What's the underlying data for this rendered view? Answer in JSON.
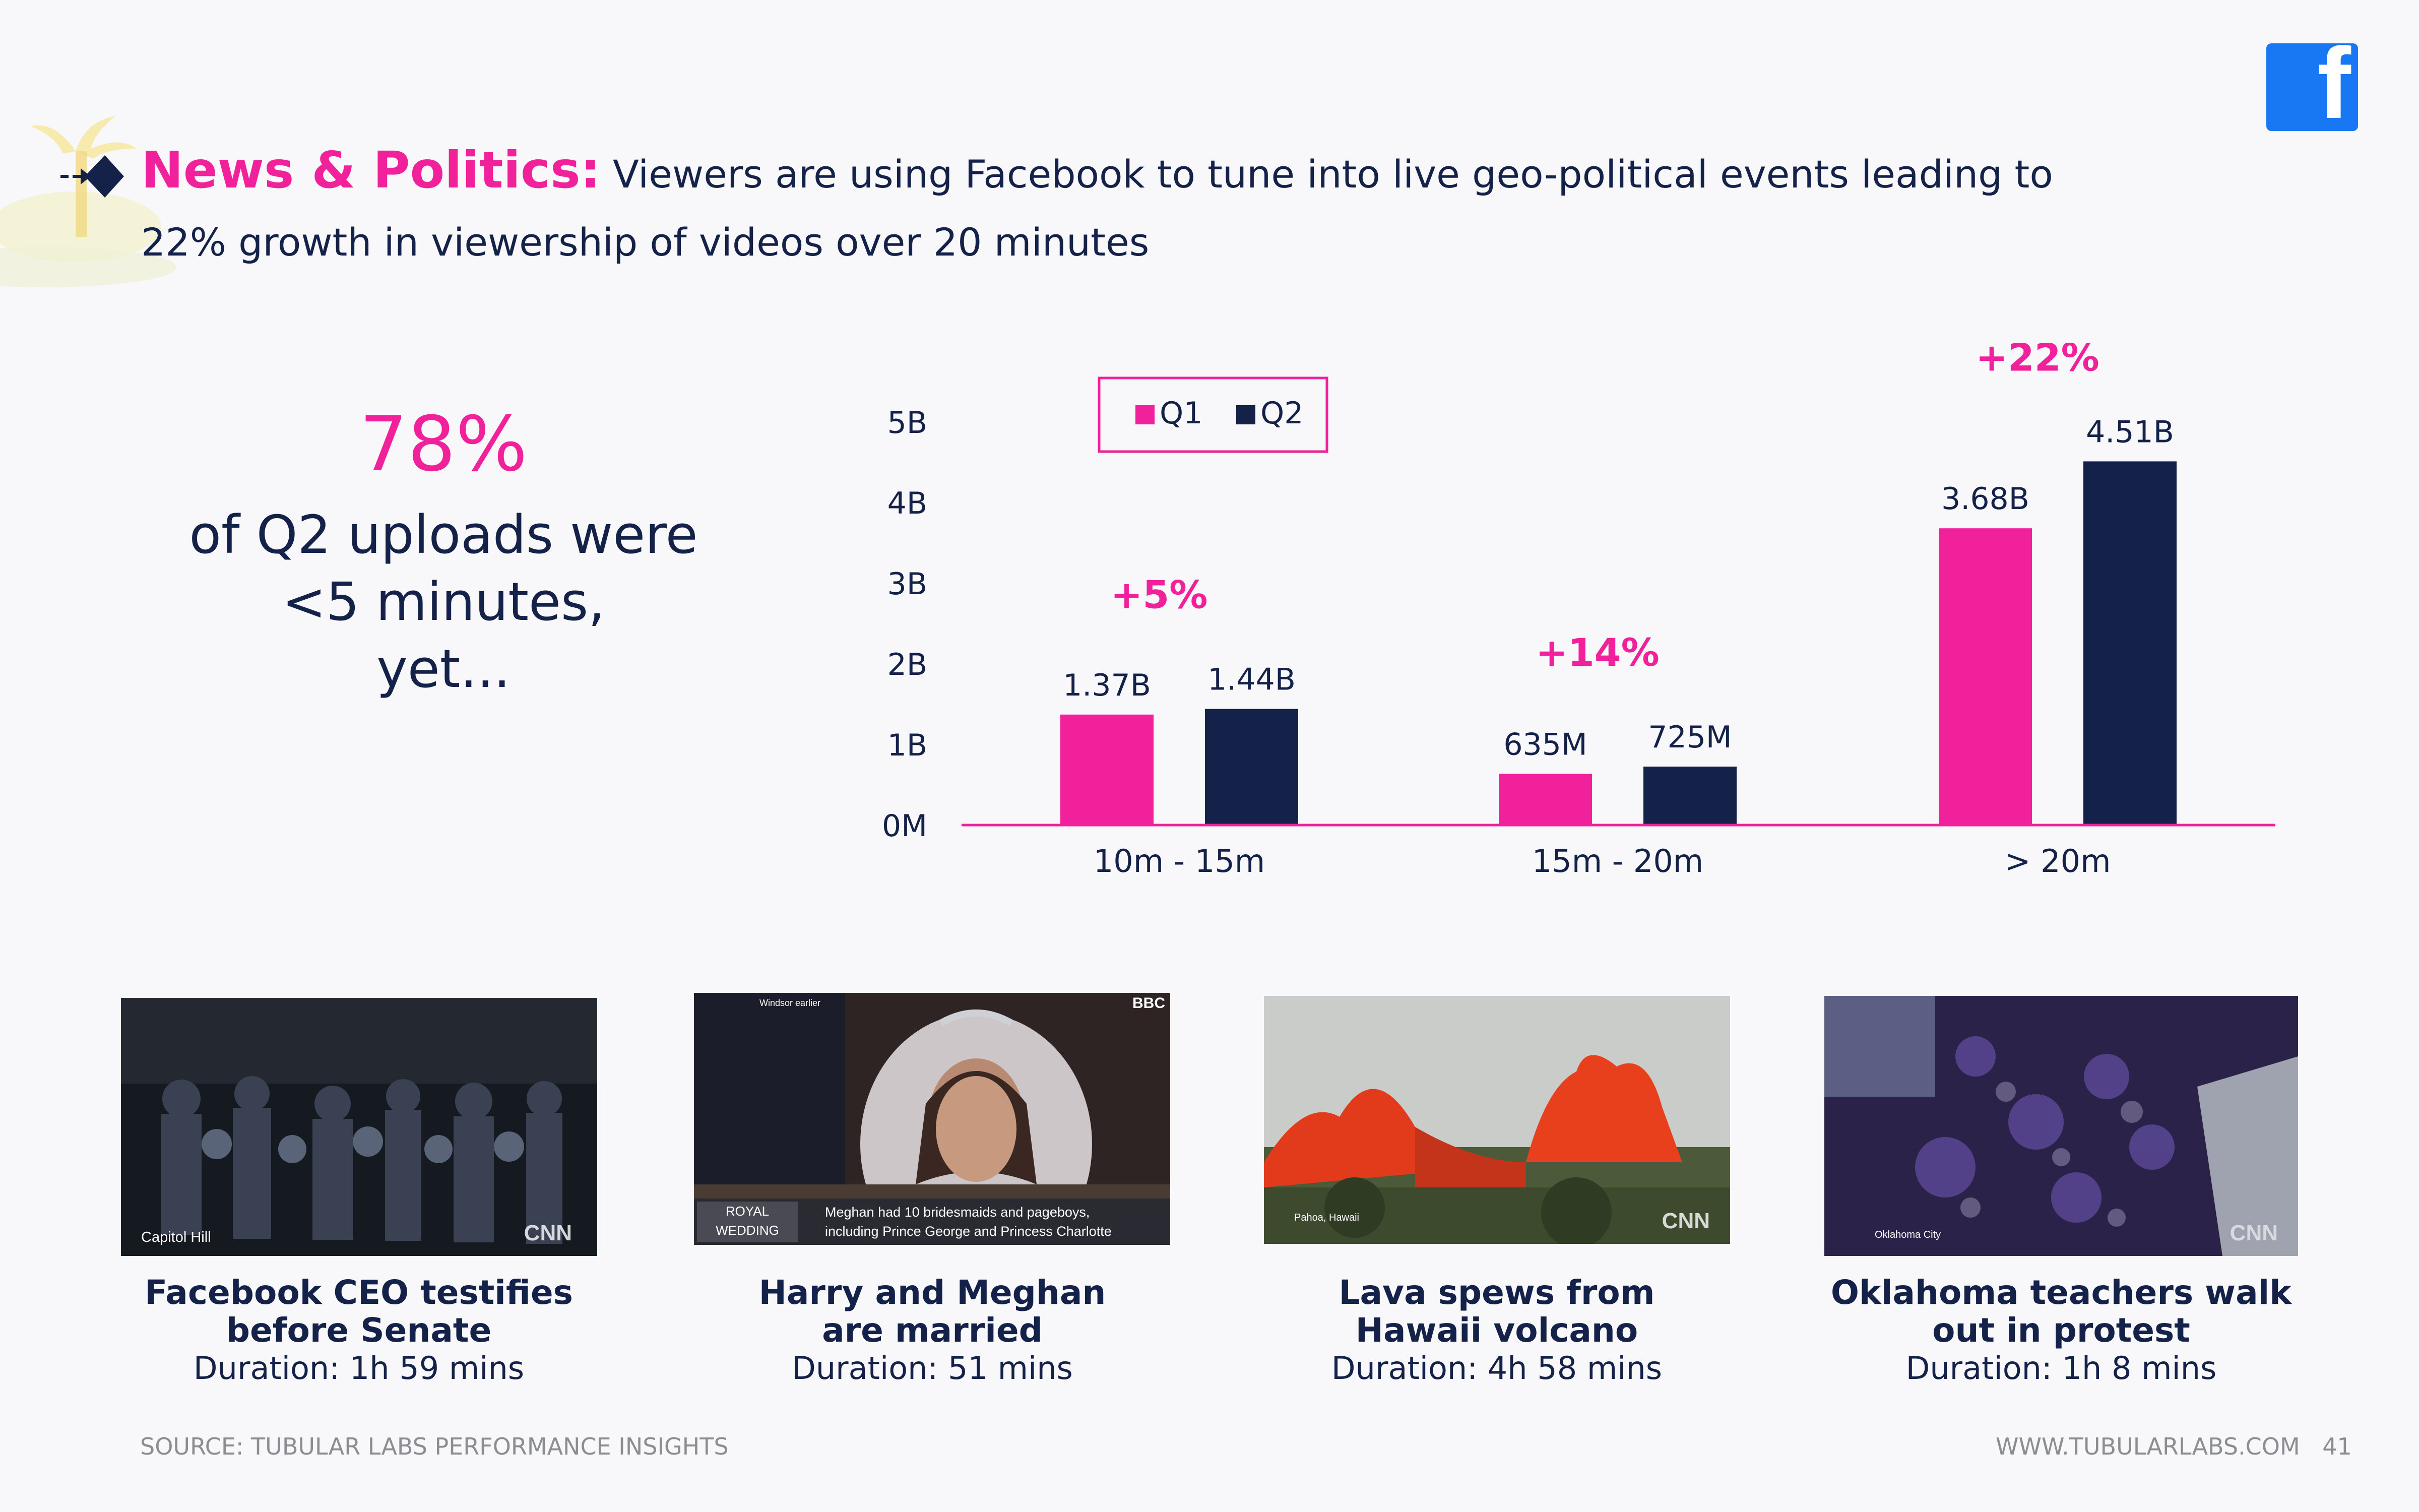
{
  "header": {
    "label": "News & Politics:",
    "text_line1": "Viewers are using Facebook to tune into live geo-political events leading to",
    "text_line2": "22% growth in viewership of videos over 20 minutes"
  },
  "stat": {
    "value": "78%",
    "line1": "of Q2 uploads were",
    "line2": "<5 minutes,",
    "line3": "yet..."
  },
  "colors": {
    "q1": "#f0219a",
    "q2": "#14224a",
    "accent": "#f0219a",
    "facebook": "#1877f2"
  },
  "chart_data": {
    "type": "bar",
    "categories": [
      "10m - 15m",
      "15m - 20m",
      "> 20m"
    ],
    "series": [
      {
        "name": "Q1",
        "values": [
          1.37,
          0.635,
          3.68
        ]
      },
      {
        "name": "Q2",
        "values": [
          1.44,
          0.725,
          4.51
        ]
      }
    ],
    "value_labels": [
      [
        "1.37B",
        "635M",
        "3.68B"
      ],
      [
        "1.44B",
        "725M",
        "4.51B"
      ]
    ],
    "growth_labels": [
      "+5%",
      "+14%",
      "+22%"
    ],
    "yticks": [
      "0M",
      "1B",
      "2B",
      "3B",
      "4B",
      "5B"
    ],
    "ylim": [
      0,
      5
    ],
    "unit": "billions of views",
    "legend": {
      "position": "top",
      "entries": [
        "Q1",
        "Q2"
      ]
    },
    "grid": false
  },
  "cards": [
    {
      "title_line1": "Facebook CEO testifies",
      "title_line2": "before Senate",
      "duration": "Duration: 1h 59 mins",
      "overlay": "Capitol Hill",
      "brand": "CNN"
    },
    {
      "title_line1": "Harry and Meghan",
      "title_line2": "are married",
      "duration": "Duration: 51 mins",
      "overlay_top": "Windsor earlier",
      "brand": "BBC",
      "badge_line1": "ROYAL",
      "badge_line2": "WEDDING",
      "caption_line1": "Meghan had 10 bridesmaids and pageboys,",
      "caption_line2": "including Prince George and Princess Charlotte"
    },
    {
      "title_line1": "Lava spews from",
      "title_line2": "Hawaii volcano",
      "duration": "Duration: 4h 58 mins",
      "overlay": "Pahoa, Hawaii",
      "brand": "CNN"
    },
    {
      "title_line1": "Oklahoma teachers walk",
      "title_line2": "out in protest",
      "duration": "Duration: 1h 8 mins",
      "overlay": "Oklahoma City",
      "brand": "CNN"
    }
  ],
  "footer": {
    "source": "SOURCE: TUBULAR LABS PERFORMANCE INSIGHTS",
    "site": "WWW.TUBULARLABS.COM",
    "page": "41"
  }
}
